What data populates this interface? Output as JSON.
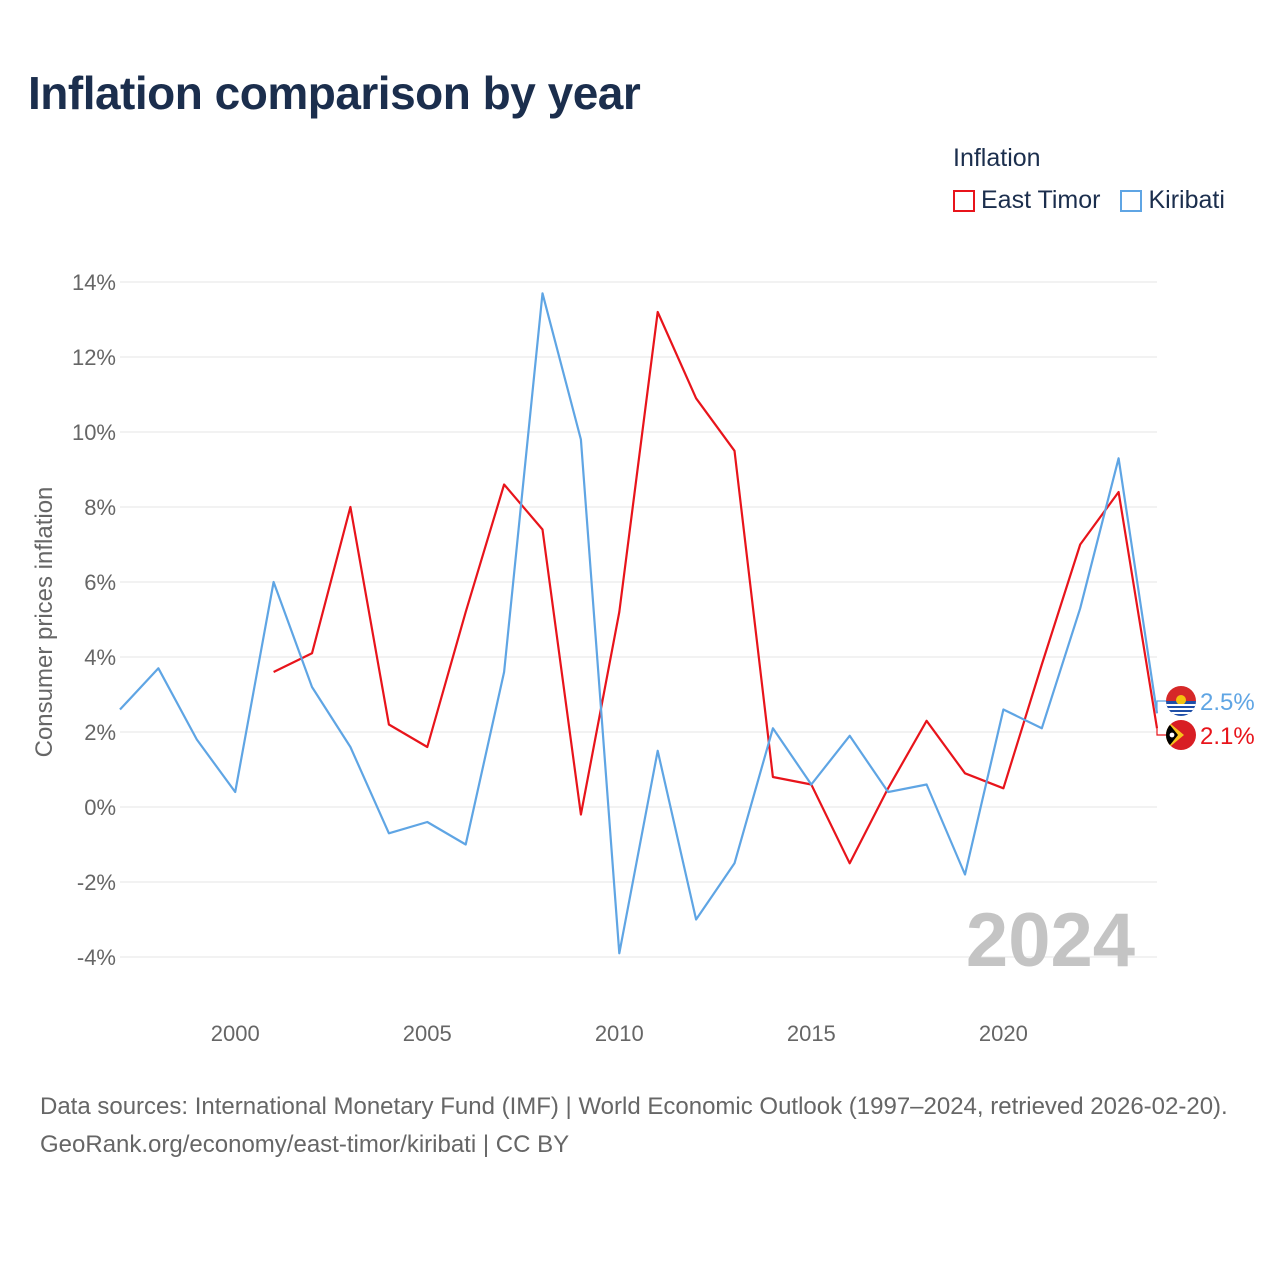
{
  "title": "Inflation comparison by year",
  "legend": {
    "title": "Inflation",
    "items": [
      {
        "label": "East Timor",
        "color": "#e8141b"
      },
      {
        "label": "Kiribati",
        "color": "#5fa5e4"
      }
    ]
  },
  "footer": {
    "sources": "Data sources: International Monetary Fund (IMF) | World Economic Outlook (1997–2024, retrieved 2026-02-20).",
    "link": "GeoRank.org/economy/east-timor/kiribati | CC BY"
  },
  "chart_data": {
    "type": "line",
    "title": "Inflation comparison by year",
    "ylabel": "Consumer prices inflation",
    "xlabel": "",
    "ylim": [
      -4,
      14
    ],
    "xlim": [
      1997,
      2024
    ],
    "yticks": [
      -4,
      -2,
      0,
      2,
      4,
      6,
      8,
      10,
      12,
      14
    ],
    "ytick_labels": [
      "-4%",
      "-2%",
      "0%",
      "2%",
      "4%",
      "6%",
      "8%",
      "10%",
      "12%",
      "14%"
    ],
    "xticks": [
      2000,
      2005,
      2010,
      2015,
      2020
    ],
    "xtick_labels": [
      "2000",
      "2005",
      "2010",
      "2015",
      "2020"
    ],
    "current_year_label": "2024",
    "series": [
      {
        "name": "East Timor",
        "color": "#e8141b",
        "end_label": "2.1%",
        "x": [
          2001,
          2002,
          2003,
          2004,
          2005,
          2006,
          2007,
          2008,
          2009,
          2010,
          2011,
          2012,
          2013,
          2014,
          2015,
          2016,
          2017,
          2018,
          2019,
          2020,
          2021,
          2022,
          2023,
          2024
        ],
        "values": [
          3.6,
          4.1,
          8.0,
          2.2,
          1.6,
          5.2,
          8.6,
          7.4,
          -0.2,
          5.2,
          13.2,
          10.9,
          9.5,
          0.8,
          0.6,
          -1.5,
          0.5,
          2.3,
          0.9,
          0.5,
          3.8,
          7.0,
          8.4,
          2.1
        ]
      },
      {
        "name": "Kiribati",
        "color": "#5fa5e4",
        "end_label": "2.5%",
        "x": [
          1997,
          1998,
          1999,
          2000,
          2001,
          2002,
          2003,
          2004,
          2005,
          2006,
          2007,
          2008,
          2009,
          2010,
          2011,
          2012,
          2013,
          2014,
          2015,
          2016,
          2017,
          2018,
          2019,
          2020,
          2021,
          2022,
          2023,
          2024
        ],
        "values": [
          2.6,
          3.7,
          1.8,
          0.4,
          6.0,
          3.2,
          1.6,
          -0.7,
          -0.4,
          -1.0,
          3.6,
          13.7,
          9.8,
          -3.9,
          1.5,
          -3.0,
          -1.5,
          2.1,
          0.6,
          1.9,
          0.4,
          0.6,
          -1.8,
          2.6,
          2.1,
          5.3,
          9.3,
          2.5
        ]
      }
    ]
  }
}
